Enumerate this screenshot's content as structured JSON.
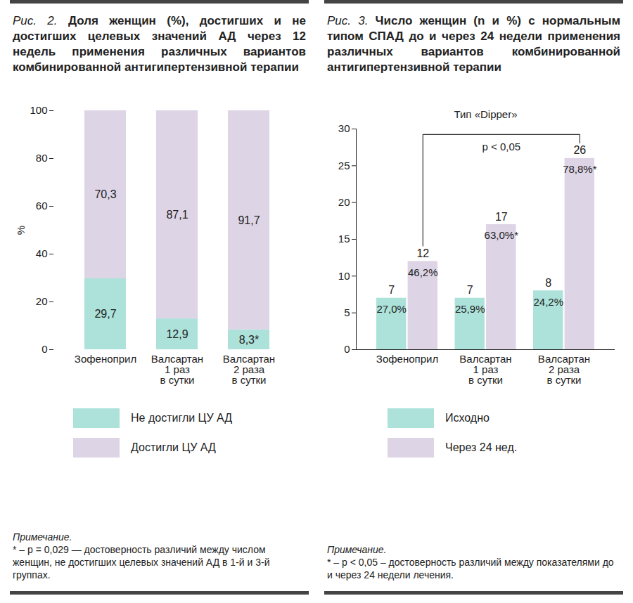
{
  "chart_data": [
    {
      "type": "bar",
      "stacked": true,
      "figure": "Рис. 2.",
      "title": "Доля женщин (%), достигших и не достигших целевых значений АД через 12 недель применения различных вариантов комбинированной антигипертензивной терапии",
      "categories": [
        "Зофеноприл",
        "Валсартан\n1 раз\nв сутки",
        "Валсартан\n2 раза\nв сутки"
      ],
      "series": [
        {
          "name": "Не достигли ЦУ АД",
          "color": "#ace2da",
          "values": [
            29.7,
            12.9,
            8.3
          ],
          "value_labels": [
            "29,7",
            "12,9",
            "8,3*"
          ]
        },
        {
          "name": "Достигли ЦУ АД",
          "color": "#ddd4e5",
          "values": [
            70.3,
            87.1,
            91.7
          ],
          "value_labels": [
            "70,3",
            "87,1",
            "91,7"
          ]
        }
      ],
      "ylabel": "%",
      "ylim": [
        0,
        100
      ],
      "yticks": [
        0,
        20,
        40,
        60,
        80,
        100
      ],
      "data_labels": true,
      "legend": "bottom",
      "note_heading": "Примечание.",
      "note": "* – p = 0,029 — достоверность различий между числом женщин, не достигших целевых значений АД в 1-й и 3-й группах."
    },
    {
      "type": "bar",
      "figure": "Рис. 3.",
      "title": "Число женщин (n и %) с нормальным типом СПАД до и через 24 недели применения различных вариантов комбинированной антигипертензивной терапии",
      "subtitle": "Тип «Dipper»",
      "categories": [
        "Зофеноприл",
        "Валсартан\n1 раз\nв сутки",
        "Валсартан\n2 раза\nв сутки"
      ],
      "series": [
        {
          "name": "Исходно",
          "color": "#ace2da",
          "values": [
            7,
            7,
            8
          ],
          "percent_labels": [
            "27,0%",
            "25,9%",
            "24,2%"
          ]
        },
        {
          "name": "Через 24 нед.",
          "color": "#ddd4e5",
          "values": [
            12,
            17,
            26
          ],
          "percent_labels": [
            "46,2%",
            "63,0%*",
            "78,8%*"
          ]
        }
      ],
      "ylim": [
        0,
        30
      ],
      "yticks": [
        0,
        5,
        10,
        15,
        20,
        25,
        30
      ],
      "data_labels": true,
      "legend": "bottom",
      "bracket": {
        "label": "p < 0,05",
        "from": {
          "category": "Зофеноприл",
          "series": "Через 24 нед."
        },
        "to": {
          "category": "Валсартан\n2 раза\nв сутки",
          "series": "Через 24 нед."
        }
      },
      "note_heading": "Примечание.",
      "note": "* – p < 0,05 – достоверность различий между показателями до и через 24 недели лечения."
    }
  ]
}
